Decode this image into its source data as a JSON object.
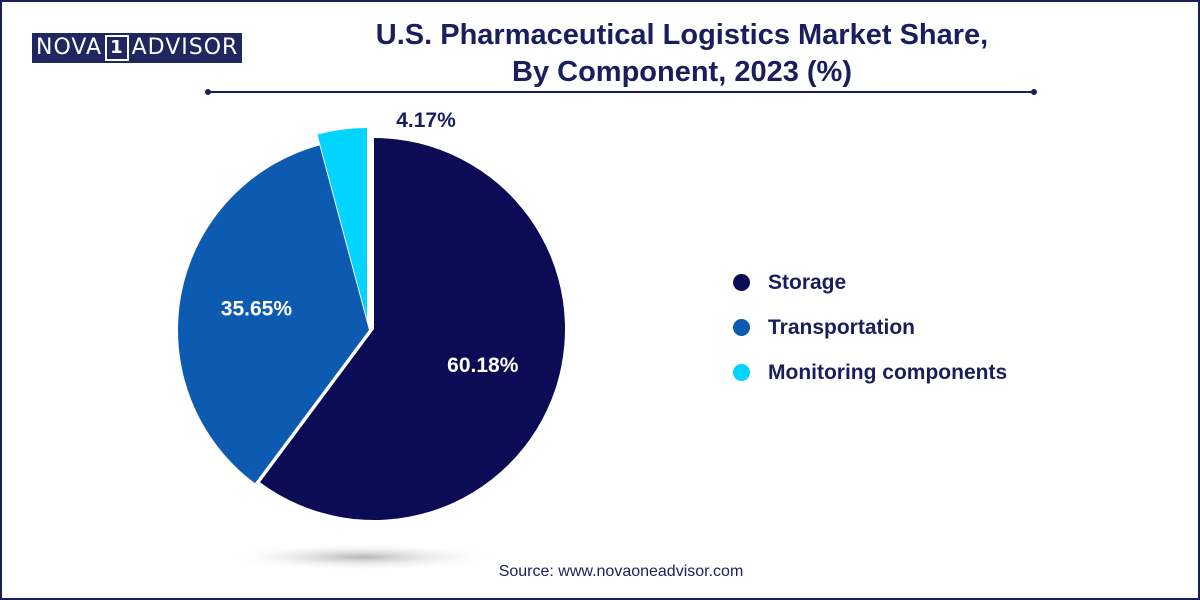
{
  "brand": {
    "part1": "NOVA",
    "part2": "1",
    "part3": "ADVISOR"
  },
  "title_line1": "U.S. Pharmaceutical Logistics Market Share,",
  "title_line2": "By Component, 2023 (%)",
  "source": "Source: www.novaoneadvisor.com",
  "chart_data": {
    "type": "pie",
    "title": "U.S. Pharmaceutical Logistics Market Share, By Component, 2023 (%)",
    "slices": [
      {
        "label": "Storage",
        "value": 60.18,
        "display": "60.18%",
        "color": "#0b0c55"
      },
      {
        "label": "Transportation",
        "value": 35.65,
        "display": "35.65%",
        "color": "#0d5bb0"
      },
      {
        "label": "Monitoring components",
        "value": 4.17,
        "display": "4.17%",
        "color": "#00d4ff"
      }
    ],
    "legend_position": "right"
  }
}
